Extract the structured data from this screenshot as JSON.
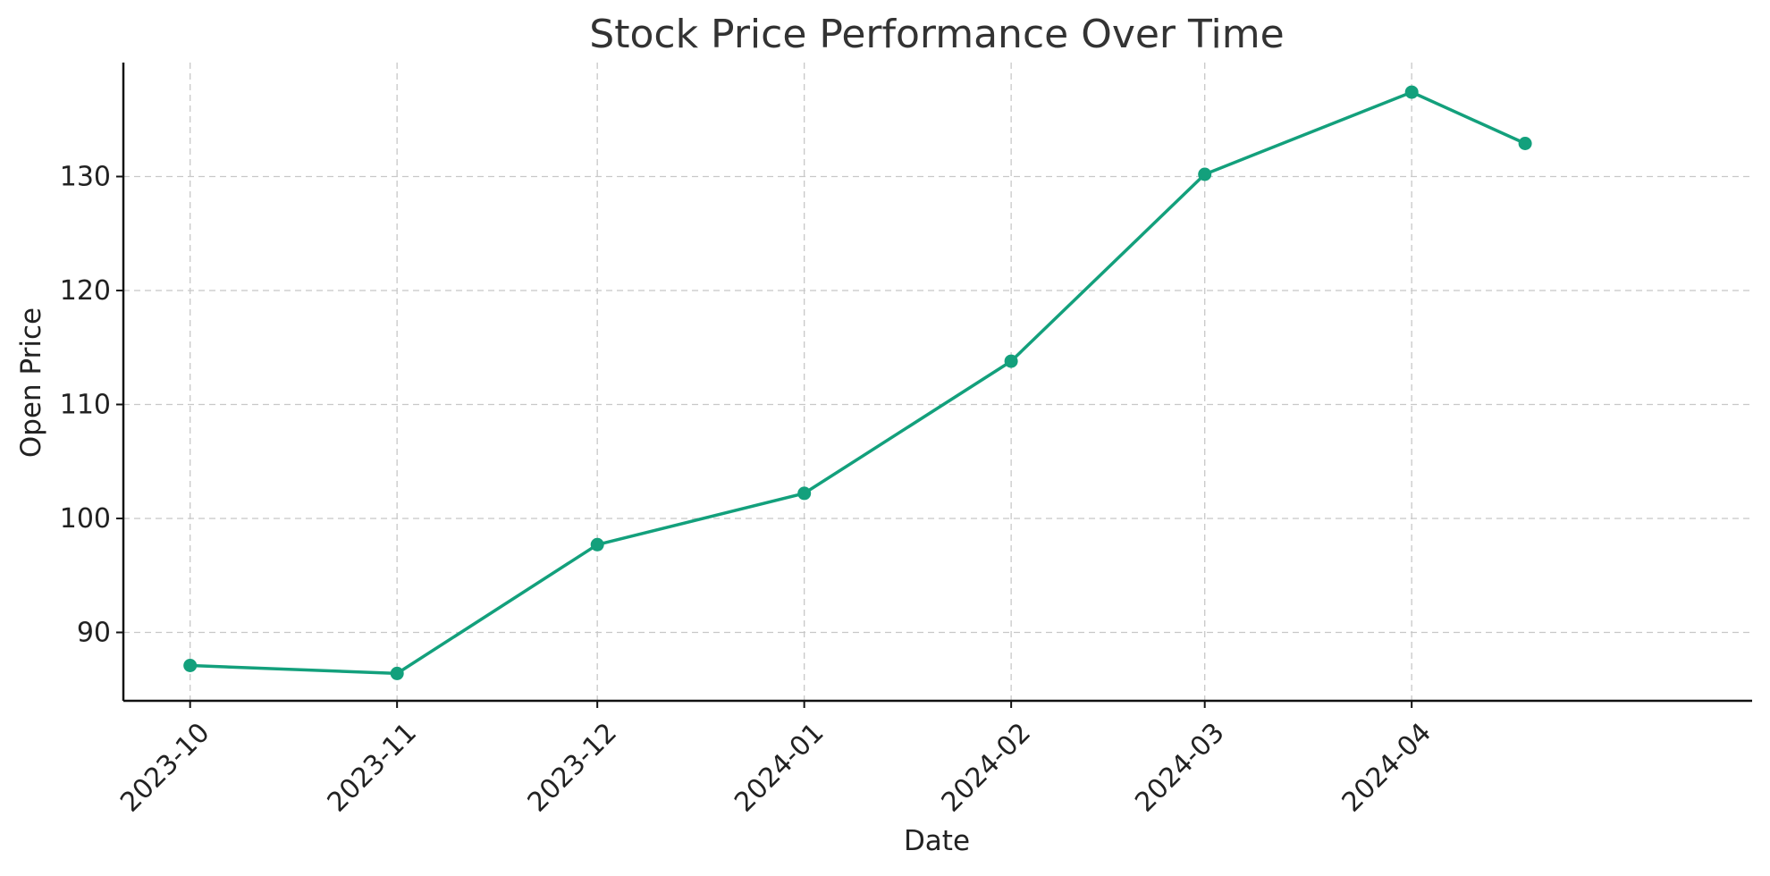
{
  "chart_data": {
    "type": "line",
    "title": "Stock Price Performance Over Time",
    "xlabel": "Date",
    "ylabel": "Open Price",
    "x_ticks": [
      "2023-10",
      "2023-11",
      "2023-12",
      "2024-01",
      "2024-02",
      "2024-03",
      "2024-04"
    ],
    "y_ticks": [
      90,
      100,
      110,
      120,
      130
    ],
    "xlim": [
      "2023-09-21",
      "2024-05-22"
    ],
    "ylim": [
      84,
      140
    ],
    "grid": true,
    "series": [
      {
        "color": "#13a07c",
        "x": [
          "2023-10-01",
          "2023-11-01",
          "2023-12-01",
          "2024-01-01",
          "2024-02-01",
          "2024-03-01",
          "2024-04-01",
          "2024-04-18"
        ],
        "values": [
          87.1,
          86.4,
          97.7,
          102.2,
          113.8,
          130.2,
          137.4,
          132.9
        ]
      }
    ]
  }
}
